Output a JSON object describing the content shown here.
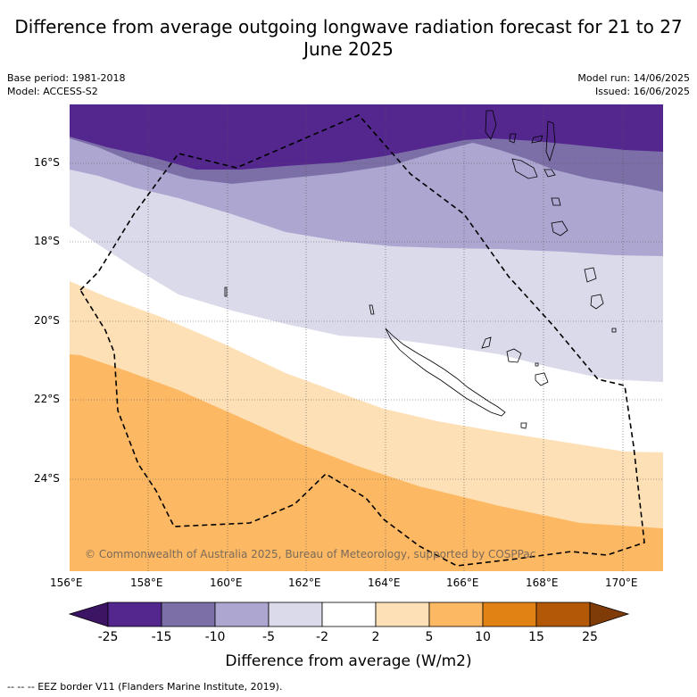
{
  "title": "Difference from average outgoing longwave radiation forecast for 21 to 27 June 2025",
  "meta": {
    "base_period": "Base period: 1981-2018",
    "model": "Model: ACCESS-S2",
    "model_run": "Model run: 14/06/2025",
    "issued": "Issued: 16/06/2025"
  },
  "credit": "© Commonwealth of Australia 2025, Bureau of Meteorology, supported by COSPPac",
  "x_ticks": [
    "156°E",
    "158°E",
    "160°E",
    "162°E",
    "164°E",
    "166°E",
    "168°E",
    "170°E"
  ],
  "y_ticks": [
    "16°S",
    "18°S",
    "20°S",
    "22°S",
    "24°S"
  ],
  "colorbar": {
    "ticks": [
      "-25",
      "-15",
      "-10",
      "-5",
      "-2",
      "2",
      "5",
      "10",
      "15",
      "25"
    ],
    "colors": [
      "#3b1563",
      "#54278f",
      "#7c6fa8",
      "#aca6d0",
      "#dadaeb",
      "#ffffff",
      "#fee0b6",
      "#fdb863",
      "#e08214",
      "#b35806",
      "#7f3b08"
    ],
    "title": "Difference from average (W/m2)"
  },
  "footnote": "--  --  -- EEZ border V11 (Flanders Marine Institute, 2019)."
}
